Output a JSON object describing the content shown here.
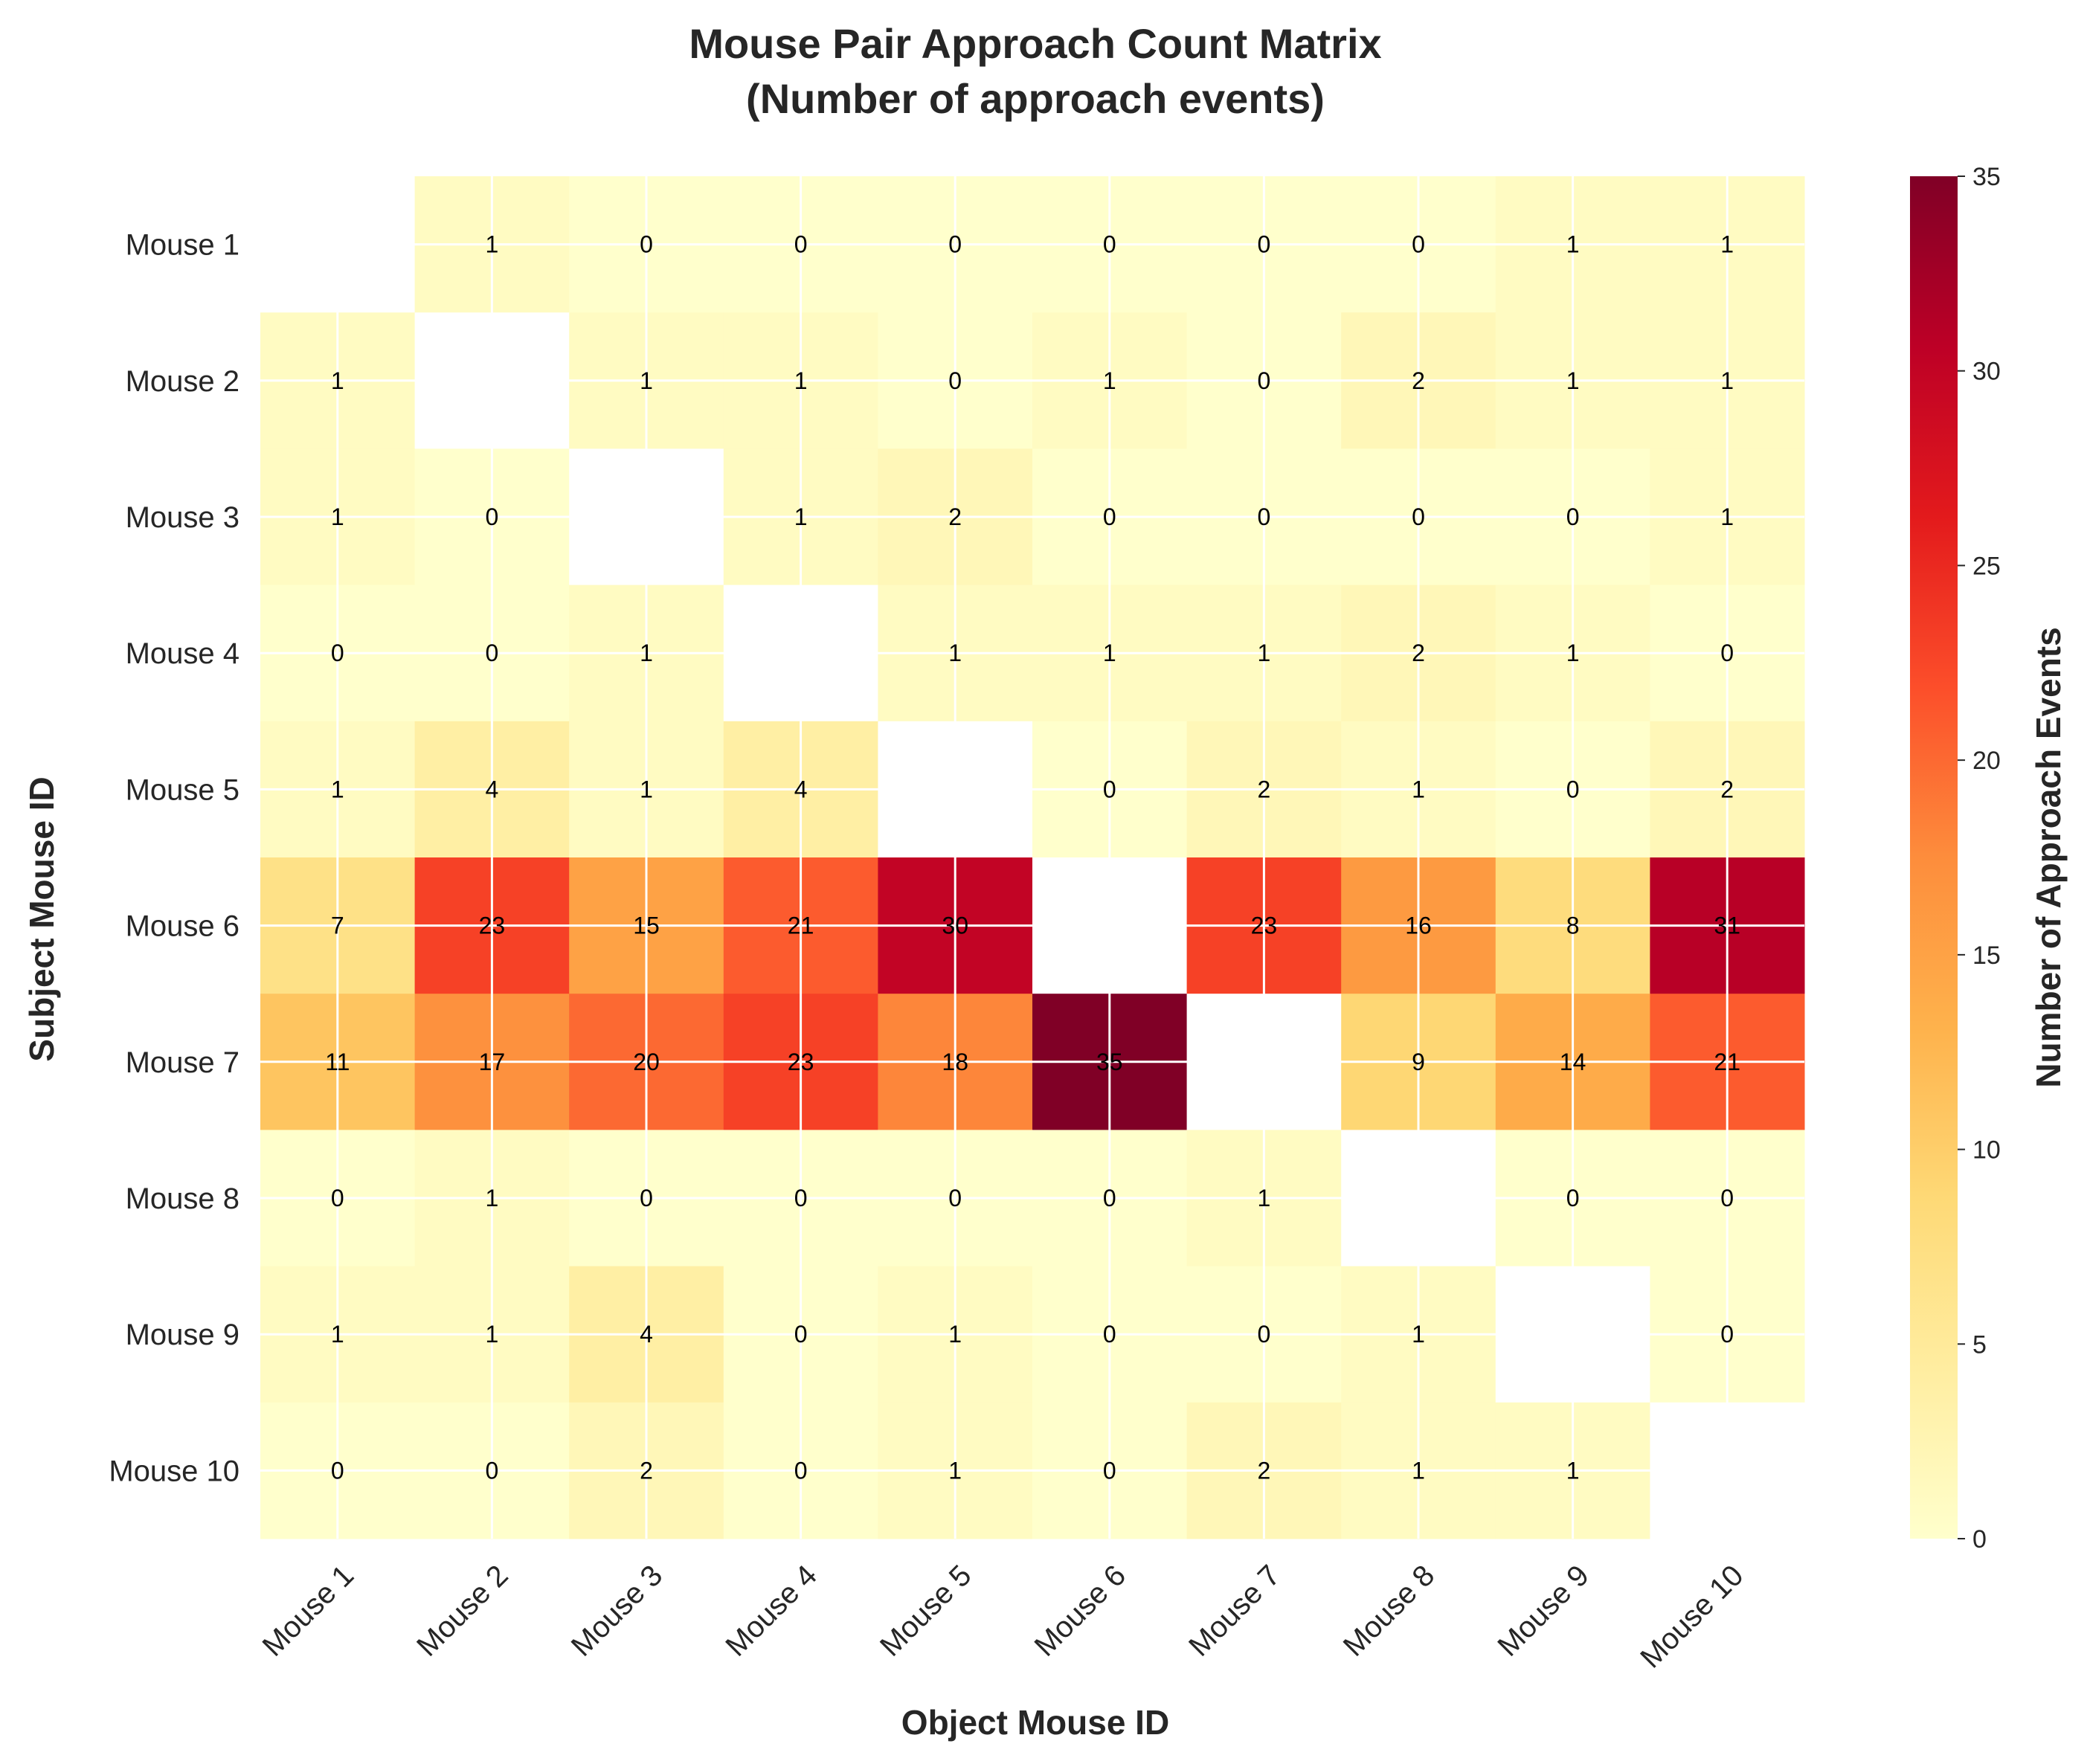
{
  "chart_data": {
    "type": "heatmap",
    "title": "Mouse Pair Approach Count Matrix",
    "subtitle": "(Number of approach events)",
    "xlabel": "Object Mouse ID",
    "ylabel": "Subject Mouse ID",
    "x_categories": [
      "Mouse 1",
      "Mouse 2",
      "Mouse 3",
      "Mouse 4",
      "Mouse 5",
      "Mouse 6",
      "Mouse 7",
      "Mouse 8",
      "Mouse 9",
      "Mouse 10"
    ],
    "y_categories": [
      "Mouse 1",
      "Mouse 2",
      "Mouse 3",
      "Mouse 4",
      "Mouse 5",
      "Mouse 6",
      "Mouse 7",
      "Mouse 8",
      "Mouse 9",
      "Mouse 10"
    ],
    "values": [
      [
        null,
        1,
        0,
        0,
        0,
        0,
        0,
        0,
        1,
        1
      ],
      [
        1,
        null,
        1,
        1,
        0,
        1,
        0,
        2,
        1,
        1
      ],
      [
        1,
        0,
        null,
        1,
        2,
        0,
        0,
        0,
        0,
        1
      ],
      [
        0,
        0,
        1,
        null,
        1,
        1,
        1,
        2,
        1,
        0
      ],
      [
        1,
        4,
        1,
        4,
        null,
        0,
        2,
        1,
        0,
        2
      ],
      [
        7,
        23,
        15,
        21,
        30,
        null,
        23,
        16,
        8,
        31
      ],
      [
        11,
        17,
        20,
        23,
        18,
        35,
        null,
        9,
        14,
        21
      ],
      [
        0,
        1,
        0,
        0,
        0,
        0,
        1,
        null,
        0,
        0
      ],
      [
        1,
        1,
        4,
        0,
        1,
        0,
        0,
        1,
        null,
        0
      ],
      [
        0,
        0,
        2,
        0,
        1,
        0,
        2,
        1,
        1,
        null
      ]
    ],
    "colorbar": {
      "label": "Number of Approach Events",
      "range": [
        0,
        35
      ],
      "ticks": [
        0,
        5,
        10,
        15,
        20,
        25,
        30,
        35
      ],
      "colormap": "YlOrRd"
    },
    "grid": true
  }
}
